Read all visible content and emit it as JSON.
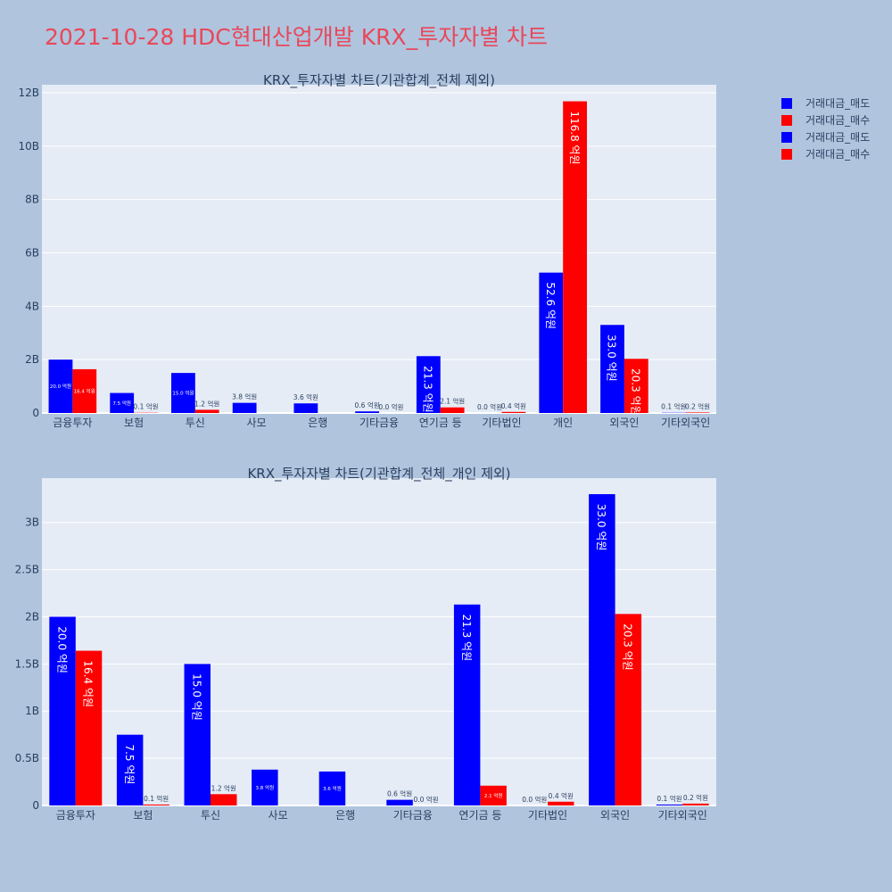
{
  "title": "2021-10-28 HDC현대산업개발 KRX_투자자별 차트",
  "colors": {
    "sell": "#0000ff",
    "buy": "#ff0000",
    "plot_bg": "#e5ecf6",
    "paper_bg": "#b0c4de",
    "text": "#2a3f5f"
  },
  "legend": [
    {
      "name": "거래대금_매도",
      "color": "#0000ff"
    },
    {
      "name": "거래대금_매수",
      "color": "#ff0000"
    },
    {
      "name": "거래대금_매도",
      "color": "#0000ff"
    },
    {
      "name": "거래대금_매수",
      "color": "#ff0000"
    }
  ],
  "chart_data": [
    {
      "type": "bar",
      "title": "KRX_투자자별 차트(기관합계_전체 제외)",
      "categories": [
        "금융투자",
        "보험",
        "투신",
        "사모",
        "은행",
        "기타금융",
        "연기금 등",
        "기타법인",
        "개인",
        "외국인",
        "기타외국인"
      ],
      "series": [
        {
          "name": "거래대금_매도",
          "values": [
            2.0,
            0.75,
            1.5,
            0.38,
            0.36,
            0.06,
            2.13,
            0.0,
            5.26,
            3.3,
            0.01
          ],
          "labels": [
            "20.0 억원",
            "7.5 억원",
            "15.0 억원",
            "3.8 억원",
            "3.6 억원",
            "0.6 억원",
            "21.3 억원",
            "0.0 억원",
            "52.6 억원",
            "33.0 억원",
            "0.1 억원"
          ]
        },
        {
          "name": "거래대금_매수",
          "values": [
            1.64,
            0.01,
            0.12,
            0.0,
            0.0,
            0.0,
            0.21,
            0.04,
            11.68,
            2.03,
            0.02
          ],
          "labels": [
            "16.4 억원",
            "0.1 억원",
            "1.2 억원",
            "",
            "",
            "0.0 억원",
            "2.1 억원",
            "0.4 억원",
            "116.8 억원",
            "20.3 억원",
            "0.2 억원"
          ]
        }
      ],
      "yticks": [
        0,
        2,
        4,
        6,
        8,
        10,
        12
      ],
      "ytick_labels": [
        "0",
        "2B",
        "4B",
        "6B",
        "8B",
        "10B",
        "12B"
      ],
      "ylim": [
        0,
        12.3
      ]
    },
    {
      "type": "bar",
      "title": "KRX_투자자별 차트(기관합계_전체_개인 제외)",
      "categories": [
        "금융투자",
        "보험",
        "투신",
        "사모",
        "은행",
        "기타금융",
        "연기금 등",
        "기타법인",
        "외국인",
        "기타외국인"
      ],
      "series": [
        {
          "name": "거래대금_매도",
          "values": [
            2.0,
            0.75,
            1.5,
            0.38,
            0.36,
            0.06,
            2.13,
            0.0,
            3.3,
            0.01
          ],
          "labels": [
            "20.0 억원",
            "7.5 억원",
            "15.0 억원",
            "3.8 억원",
            "3.6 억원",
            "0.6 억원",
            "21.3 억원",
            "0.0 억원",
            "33.0 억원",
            "0.1 억원"
          ]
        },
        {
          "name": "거래대금_매수",
          "values": [
            1.64,
            0.01,
            0.12,
            0.0,
            0.0,
            0.0,
            0.21,
            0.04,
            2.03,
            0.02
          ],
          "labels": [
            "16.4 억원",
            "0.1 억원",
            "1.2 억원",
            "",
            "",
            "0.0 억원",
            "2.1 억원",
            "0.4 억원",
            "20.3 억원",
            "0.2 억원"
          ]
        }
      ],
      "yticks": [
        0,
        0.5,
        1,
        1.5,
        2,
        2.5,
        3
      ],
      "ytick_labels": [
        "0",
        "0.5B",
        "1B",
        "1.5B",
        "2B",
        "2.5B",
        "3B"
      ],
      "ylim": [
        0,
        3.47
      ]
    }
  ]
}
